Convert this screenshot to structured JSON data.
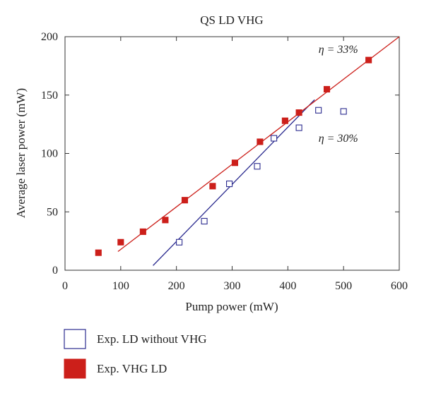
{
  "chart_data": {
    "type": "scatter",
    "title": "QS LD VHG",
    "xlabel": "Pump power (mW)",
    "ylabel": "Average laser power (mW)",
    "xlim": [
      0,
      600
    ],
    "ylim": [
      0,
      200
    ],
    "x_ticks": [
      0,
      100,
      200,
      300,
      400,
      500,
      600
    ],
    "y_ticks": [
      0,
      50,
      100,
      150,
      200
    ],
    "grid": false,
    "legend_position": "below",
    "series": [
      {
        "name": "Exp. LD without VHG",
        "marker": "open-square",
        "color": "#2b2b8f",
        "x": [
          205,
          250,
          295,
          345,
          375,
          420,
          455,
          500
        ],
        "y": [
          24,
          42,
          74,
          89,
          113,
          122,
          137,
          136
        ]
      },
      {
        "name": "Exp. VHG LD",
        "marker": "filled-square",
        "color": "#cc1f1a",
        "x": [
          60,
          100,
          140,
          180,
          215,
          265,
          305,
          350,
          395,
          420,
          470,
          545
        ],
        "y": [
          15,
          24,
          33,
          43,
          60,
          72,
          92,
          110,
          128,
          135,
          155,
          180
        ]
      }
    ],
    "fit_lines": [
      {
        "series": "Exp. LD without VHG",
        "color": "#2b2b8f",
        "x": [
          158,
          448
        ],
        "y": [
          4,
          146
        ]
      },
      {
        "series": "Exp. VHG LD",
        "color": "#cc1f1a",
        "x": [
          95,
          600
        ],
        "y": [
          16,
          200
        ]
      }
    ],
    "annotations": [
      {
        "text": "η = 33%",
        "x": 455,
        "y": 186
      },
      {
        "text": "η = 30%",
        "x": 455,
        "y": 110
      }
    ]
  }
}
